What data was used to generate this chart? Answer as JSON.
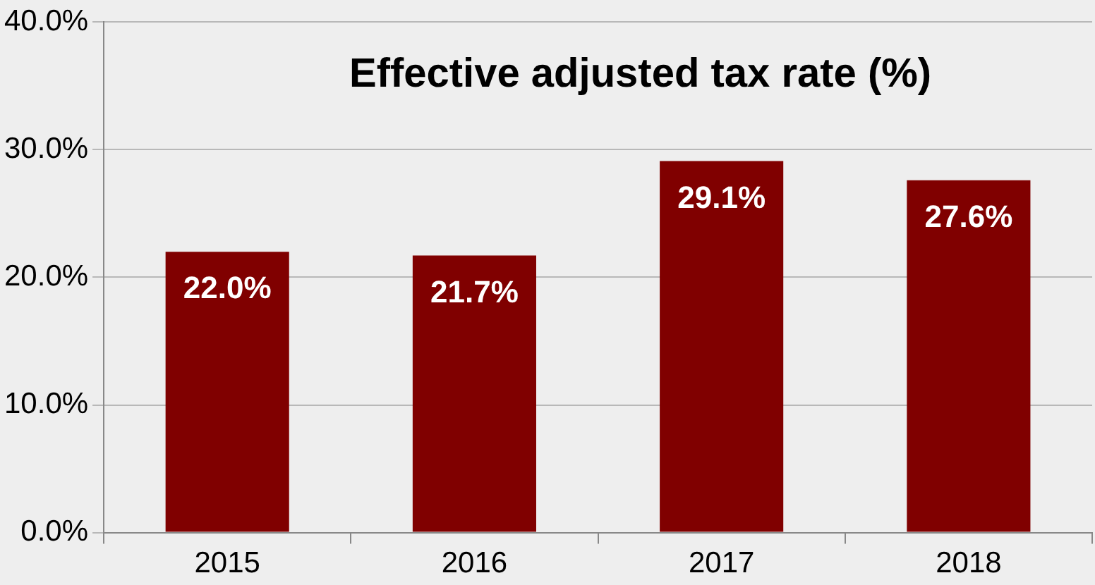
{
  "chart_data": {
    "type": "bar",
    "title": "Effective adjusted tax rate (%)",
    "categories": [
      "2015",
      "2016",
      "2017",
      "2018"
    ],
    "values": [
      22.0,
      21.7,
      29.1,
      27.6
    ],
    "value_labels": [
      "22.0%",
      "21.7%",
      "29.1%",
      "27.6%"
    ],
    "color": "#800000",
    "ylim": [
      0,
      40
    ],
    "yticks": [
      {
        "value": 0,
        "label": "0.0%"
      },
      {
        "value": 10,
        "label": "10.0%"
      },
      {
        "value": 20,
        "label": "20.0%"
      },
      {
        "value": 30,
        "label": "30.0%"
      },
      {
        "value": 40,
        "label": "40.0%"
      }
    ],
    "grid": "y"
  }
}
